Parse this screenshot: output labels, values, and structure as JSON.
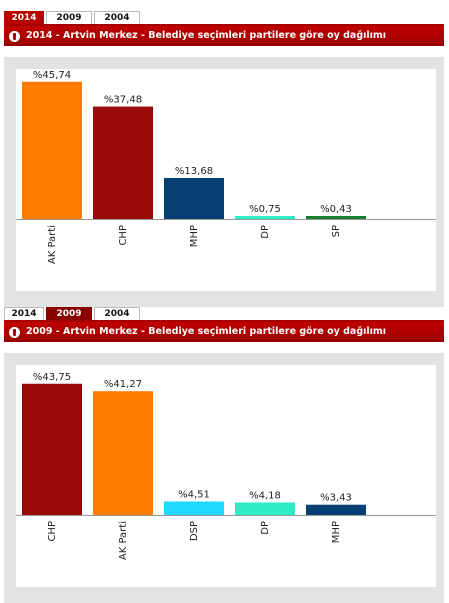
{
  "colors": {
    "AK Parti": "#ff7c00",
    "CHP": "#9b0a0a",
    "MHP": "#053f74",
    "DP": "#2eecc6",
    "SP": "#157f2f",
    "DSP": "#1fd8ff",
    "title_bar": "#b00000"
  },
  "panels": [
    {
      "tabs": [
        {
          "label": "2014",
          "state": "active"
        },
        {
          "label": "2009",
          "state": "normal"
        },
        {
          "label": "2004",
          "state": "normal"
        }
      ],
      "title": "2014 - Artvin Merkez - Belediye seçimleri partilere göre oy dağılımı",
      "icon": "info-icon"
    },
    {
      "tabs": [
        {
          "label": "2014",
          "state": "normal"
        },
        {
          "label": "2009",
          "state": "dark"
        },
        {
          "label": "2004",
          "state": "normal"
        }
      ],
      "title": "2009 - Artvin Merkez - Belediye seçimleri partilere göre oy dağılımı",
      "icon": "info-icon"
    }
  ],
  "chart_data": [
    {
      "type": "bar",
      "categories": [
        "AK Parti",
        "CHP",
        "MHP",
        "DP",
        "SP"
      ],
      "values": [
        45.74,
        37.48,
        13.68,
        0.75,
        0.43
      ],
      "data_labels": [
        "%45,74",
        "%37,48",
        "%13,68",
        "%0,75",
        "%0,43"
      ],
      "ylim": [
        0,
        50
      ],
      "grid": false,
      "legend": "none"
    },
    {
      "type": "bar",
      "categories": [
        "CHP",
        "AK Parti",
        "DSP",
        "DP",
        "MHP"
      ],
      "values": [
        43.75,
        41.27,
        4.51,
        4.18,
        3.43
      ],
      "data_labels": [
        "%43,75",
        "%41,27",
        "%4,51",
        "%4,18",
        "%3,43"
      ],
      "ylim": [
        0,
        50
      ],
      "grid": false,
      "legend": "none"
    }
  ]
}
